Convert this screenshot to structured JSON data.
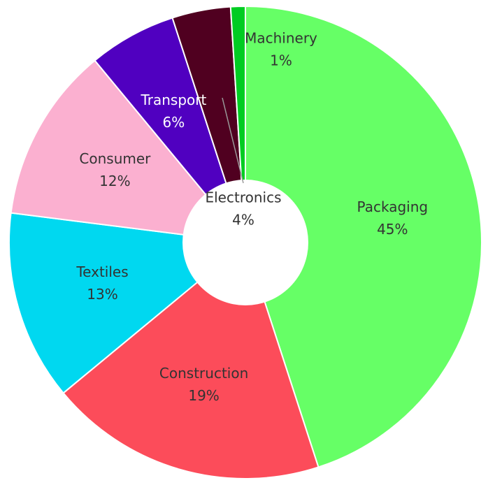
{
  "chart_data": {
    "type": "pie",
    "categories": [
      "Packaging",
      "Construction",
      "Textiles",
      "Consumer",
      "Transport",
      "Electronics",
      "Machinery"
    ],
    "values": [
      45,
      19,
      13,
      12,
      6,
      4,
      1
    ],
    "value_labels": [
      "45%",
      "19%",
      "13%",
      "12%",
      "6%",
      "4%",
      "1%"
    ],
    "colors": [
      "#66ff66",
      "#fc4c5a",
      "#00d8f0",
      "#fbb0d0",
      "#5000c0",
      "#500020",
      "#00cc22"
    ]
  }
}
